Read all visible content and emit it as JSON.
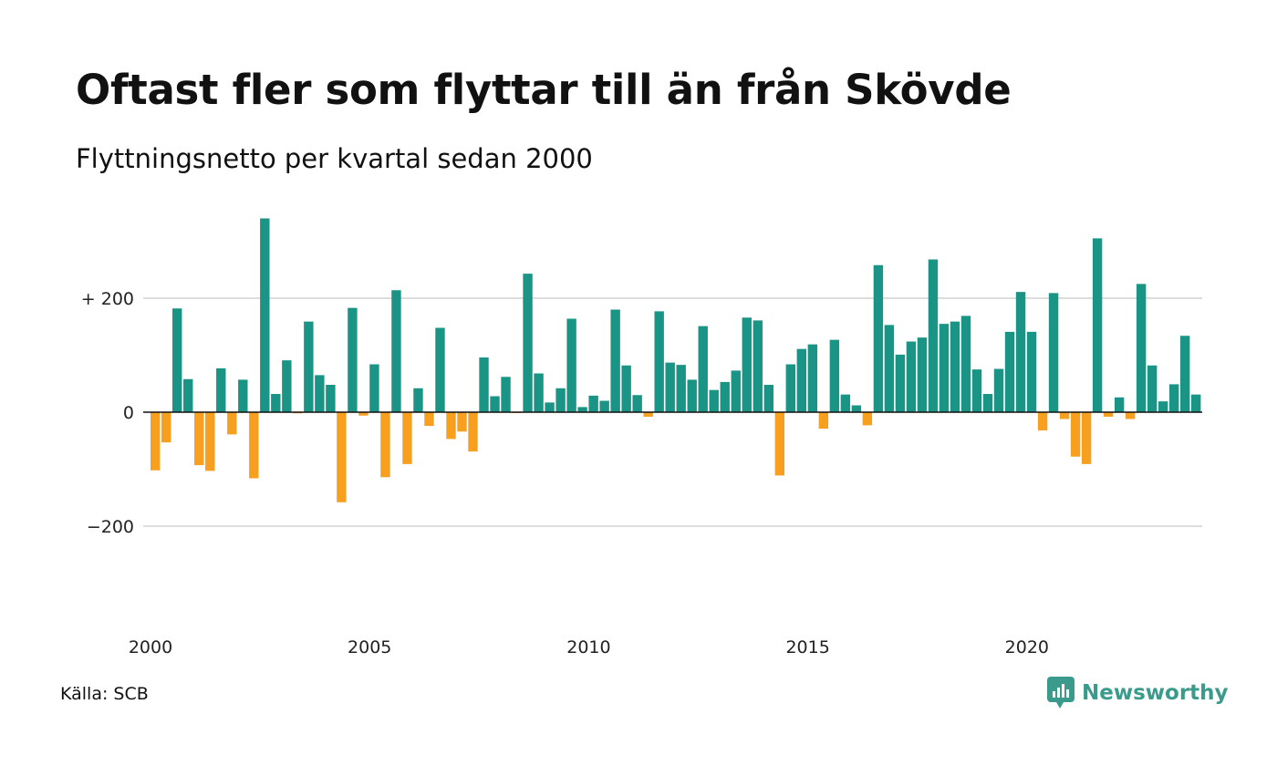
{
  "header": {
    "title": "Oftast fler som flyttar till än från Skövde",
    "subtitle": "Flyttningsnetto per kvartal sedan 2000"
  },
  "footer": {
    "source": "Källa: SCB",
    "brand": "Newsworthy",
    "brand_icon": "newsworthy-logo-icon"
  },
  "colors": {
    "positive": "#1a9585",
    "negative": "#f7a020",
    "grid": "#dddddd",
    "zero_line": "#111111",
    "brand": "#3a9a8c"
  },
  "chart_data": {
    "type": "bar",
    "title": "Oftast fler som flyttar till än från Skövde",
    "subtitle": "Flyttningsnetto per kvartal sedan 2000",
    "xlabel": "",
    "ylabel": "",
    "ylim": [
      -370,
      370
    ],
    "y_ticks": [
      {
        "value": 200,
        "label": "+ 200"
      },
      {
        "value": 0,
        "label": "0"
      },
      {
        "value": -200,
        "label": "−200"
      }
    ],
    "x_ticks": [
      "2000",
      "2005",
      "2010",
      "2015",
      "2020"
    ],
    "start_year": 2000,
    "grid": true,
    "legend": "none",
    "values": [
      -102,
      -53,
      182,
      58,
      -93,
      -103,
      77,
      -39,
      57,
      -116,
      340,
      32,
      91,
      -2,
      159,
      65,
      48,
      -158,
      183,
      -6,
      84,
      -114,
      214,
      -91,
      42,
      -24,
      148,
      -47,
      -34,
      -69,
      96,
      28,
      62,
      -1,
      243,
      68,
      17,
      42,
      164,
      9,
      29,
      20,
      180,
      82,
      30,
      -8,
      177,
      87,
      83,
      57,
      151,
      39,
      53,
      73,
      166,
      161,
      48,
      -111,
      84,
      111,
      119,
      -29,
      127,
      31,
      12,
      -23,
      258,
      153,
      101,
      124,
      131,
      268,
      155,
      159,
      169,
      75,
      32,
      76,
      141,
      211,
      141,
      -32,
      209,
      -12,
      -78,
      -91,
      305,
      -8,
      26,
      -12,
      225,
      82,
      19,
      49,
      134,
      31
    ]
  }
}
